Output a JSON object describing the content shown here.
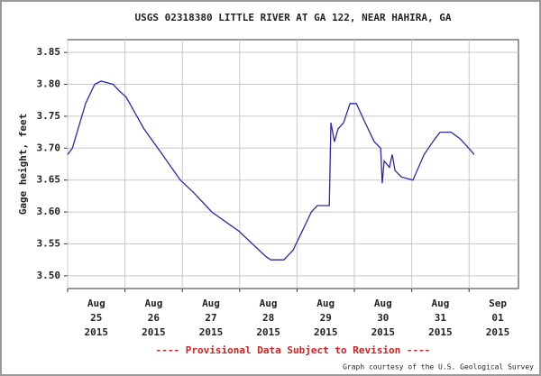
{
  "chart_data": {
    "type": "line",
    "title": "USGS 02318380 LITTLE RIVER AT GA 122, NEAR HAHIRA, GA",
    "y_label": "Gage height, feet",
    "footer_note": "---- Provisional Data Subject to Revision ----",
    "credit": "Graph courtesy of the U.S. Geological Survey",
    "x": [
      "2015-08-25T00:00",
      "2015-08-25T02:00",
      "2015-08-25T07:30",
      "2015-08-25T11:20",
      "2015-08-25T14:00",
      "2015-08-25T19:00",
      "2015-08-25T21:30",
      "2015-08-26T00:30",
      "2015-08-26T08:00",
      "2015-08-26T15:40",
      "2015-08-26T23:10",
      "2015-08-27T04:50",
      "2015-08-27T12:20",
      "2015-08-27T19:50",
      "2015-08-27T23:40",
      "2015-08-28T05:20",
      "2015-08-28T11:00",
      "2015-08-28T13:00",
      "2015-08-28T18:30",
      "2015-08-28T22:20",
      "2015-08-29T02:10",
      "2015-08-29T06:00",
      "2015-08-29T08:30",
      "2015-08-29T13:30",
      "2015-08-29T14:10",
      "2015-08-29T15:40",
      "2015-08-29T17:10",
      "2015-08-29T19:30",
      "2015-08-29T22:10",
      "2015-08-30T00:50",
      "2015-08-30T04:30",
      "2015-08-30T08:20",
      "2015-08-30T11:00",
      "2015-08-30T11:40",
      "2015-08-30T12:30",
      "2015-08-30T14:40",
      "2015-08-30T15:50",
      "2015-08-30T17:00",
      "2015-08-30T19:40",
      "2015-08-31T00:30",
      "2015-08-31T05:10",
      "2015-08-31T08:50",
      "2015-08-31T11:50",
      "2015-08-31T16:30",
      "2015-08-31T20:10",
      "2015-08-31T23:50",
      "2015-09-01T02:10"
    ],
    "series": [
      {
        "color": "#2a2aa8",
        "values": [
          3.69,
          3.7,
          3.77,
          3.8,
          3.805,
          3.8,
          3.79,
          3.78,
          3.73,
          3.69,
          3.65,
          3.63,
          3.6,
          3.58,
          3.57,
          3.55,
          3.53,
          3.525,
          3.525,
          3.54,
          3.57,
          3.6,
          3.61,
          3.61,
          3.74,
          3.71,
          3.73,
          3.74,
          3.77,
          3.77,
          3.74,
          3.71,
          3.7,
          3.645,
          3.68,
          3.67,
          3.69,
          3.665,
          3.655,
          3.65,
          3.69,
          3.71,
          3.725,
          3.725,
          3.715,
          3.7,
          3.69
        ]
      }
    ],
    "xlim": [
      "2015-08-25T00:00",
      "2015-09-01T20:40"
    ],
    "xticks": [
      {
        "value": "2015-08-25T00:00",
        "label": [
          "Aug",
          "25",
          "2015"
        ]
      },
      {
        "value": "2015-08-26T00:00",
        "label": [
          "Aug",
          "26",
          "2015"
        ]
      },
      {
        "value": "2015-08-27T00:00",
        "label": [
          "Aug",
          "27",
          "2015"
        ]
      },
      {
        "value": "2015-08-28T00:00",
        "label": [
          "Aug",
          "28",
          "2015"
        ]
      },
      {
        "value": "2015-08-29T00:00",
        "label": [
          "Aug",
          "29",
          "2015"
        ]
      },
      {
        "value": "2015-08-30T00:00",
        "label": [
          "Aug",
          "30",
          "2015"
        ]
      },
      {
        "value": "2015-08-31T00:00",
        "label": [
          "Aug",
          "31",
          "2015"
        ]
      },
      {
        "value": "2015-09-01T00:00",
        "label": [
          "Sep",
          "01",
          "2015"
        ]
      }
    ],
    "ylim": [
      3.48,
      3.87
    ],
    "yticks": [
      {
        "value": 3.5,
        "label": "3.50"
      },
      3.55,
      {
        "value": 3.6,
        "label": "3.60"
      },
      3.65,
      {
        "value": 3.7,
        "label": "3.70"
      },
      3.75,
      {
        "value": 3.8,
        "label": "3.80"
      },
      3.85
    ],
    "grid": true
  }
}
